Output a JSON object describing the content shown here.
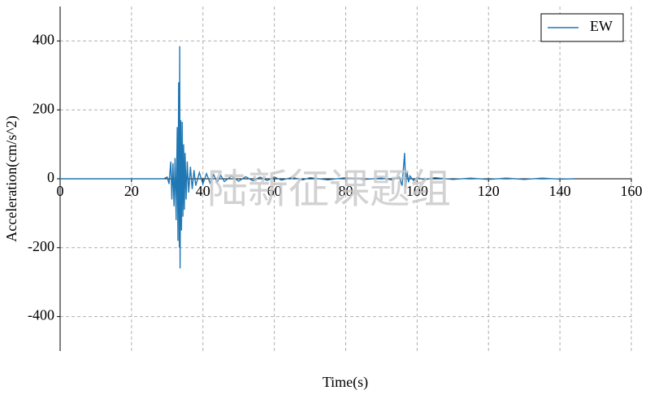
{
  "chart_data": {
    "type": "line",
    "xlabel": "Time(s)",
    "ylabel": "Acceleration(cm/s^2)",
    "watermark": "陆新征课题组",
    "xlim": [
      0,
      160
    ],
    "xticks": [
      0,
      20,
      40,
      60,
      80,
      100,
      120,
      140,
      160
    ],
    "ylim": [
      -500,
      500
    ],
    "yticks": [
      -400,
      -200,
      0,
      200,
      400
    ],
    "grid": true,
    "legend": "upper right",
    "x": [
      0,
      10,
      20,
      29,
      30,
      30.5,
      31,
      31.3,
      31.6,
      31.9,
      32.2,
      32.5,
      32.8,
      33.0,
      33.2,
      33.4,
      33.5,
      33.6,
      33.8,
      34.0,
      34.2,
      34.4,
      34.6,
      34.8,
      35.0,
      35.3,
      35.6,
      36,
      36.5,
      37,
      37.5,
      38,
      39,
      40,
      41,
      42,
      43,
      44,
      45,
      46,
      48,
      50,
      52,
      54,
      56,
      58,
      60,
      62,
      65,
      68,
      70,
      75,
      80,
      85,
      90,
      93,
      95,
      95.8,
      96.2,
      96.5,
      96.8,
      97.2,
      97.6,
      98,
      99,
      100,
      102,
      105,
      110,
      115,
      120,
      125,
      130,
      135,
      140,
      144
    ],
    "series": [
      {
        "name": "EW",
        "color": "#1f77b4",
        "values": [
          0,
          0,
          0,
          0,
          5,
          -15,
          50,
          -60,
          45,
          -80,
          60,
          -120,
          150,
          -180,
          280,
          -200,
          385,
          -260,
          170,
          -150,
          165,
          -110,
          100,
          -90,
          75,
          -60,
          50,
          -40,
          35,
          -30,
          25,
          -20,
          18,
          -15,
          15,
          -12,
          12,
          -10,
          10,
          -8,
          8,
          -7,
          6,
          -6,
          5,
          -5,
          5,
          -4,
          4,
          -3,
          3,
          -3,
          3,
          -2,
          2,
          -3,
          5,
          -20,
          35,
          75,
          -25,
          20,
          -10,
          8,
          -5,
          4,
          -3,
          3,
          -2,
          2,
          -2,
          2,
          -2,
          2,
          -1,
          0
        ]
      }
    ]
  }
}
